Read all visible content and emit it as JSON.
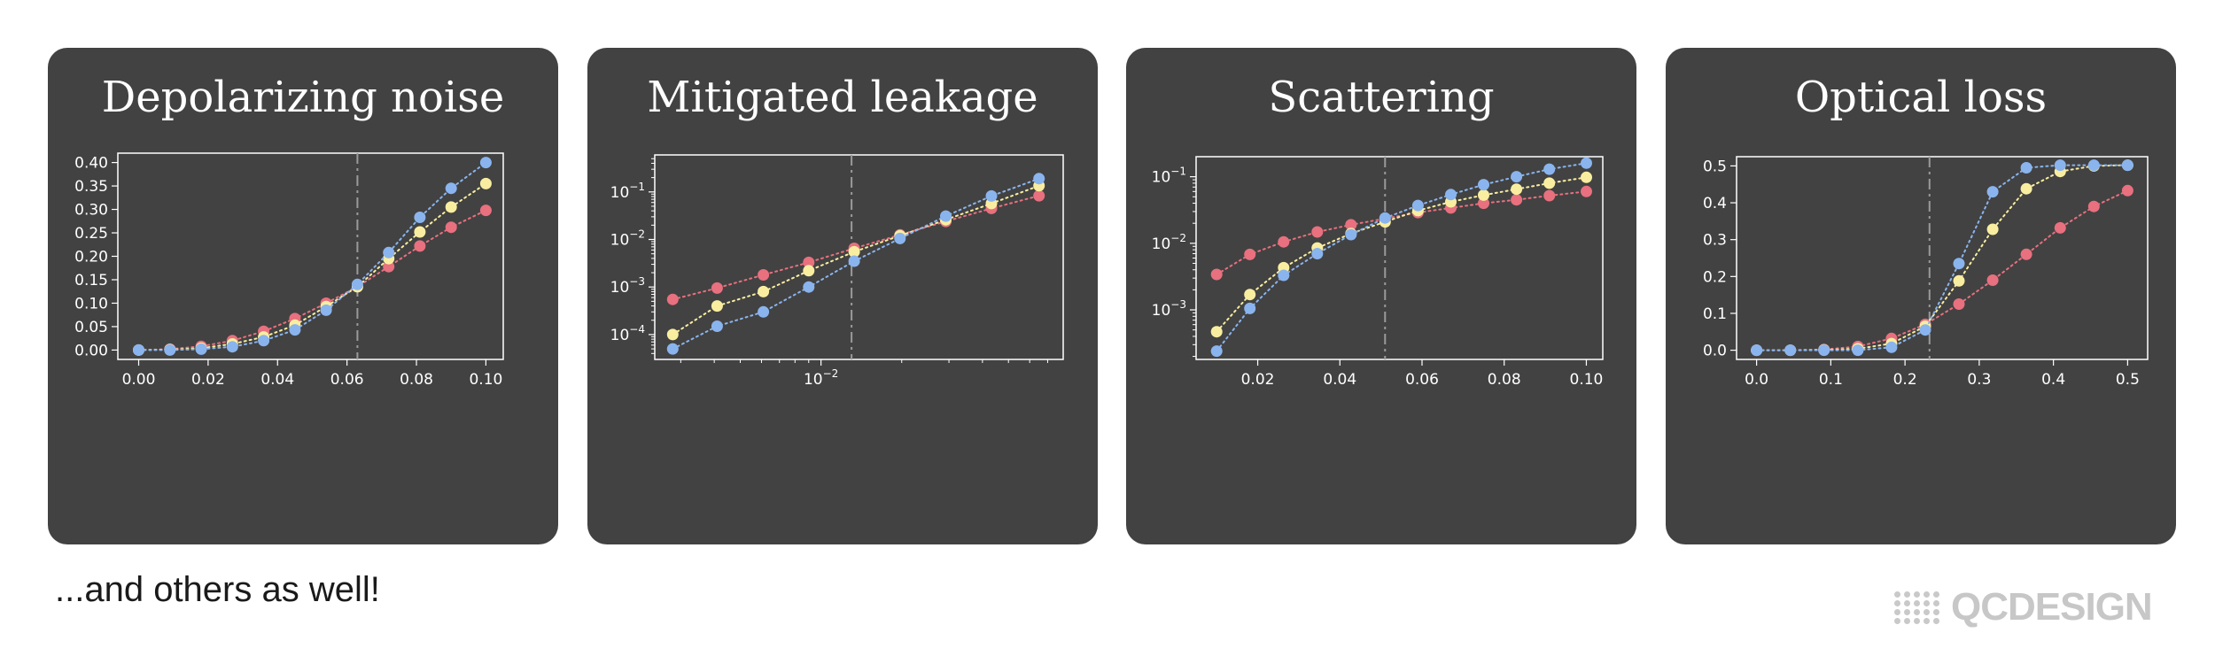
{
  "footer": {
    "text": "...and others as well!"
  },
  "logo": {
    "text": "QCDESIGN",
    "color": "#c7c7c7"
  },
  "colors": {
    "card_bg": "#424242",
    "plot_bg": "#424242",
    "frame": "#ffffff",
    "threshold_line": "#9a9a9a",
    "blue": "#8ab4ee",
    "yellow": "#f9eea0",
    "red": "#e8707f"
  },
  "chart_data": [
    {
      "type": "line",
      "title": "Depolarizing noise",
      "xlabel": "",
      "ylabel": "",
      "xscale": "linear",
      "yscale": "linear",
      "xlim": [
        -0.006,
        0.105
      ],
      "ylim": [
        -0.02,
        0.42
      ],
      "xticks": [
        0,
        0.02,
        0.04,
        0.06,
        0.08,
        0.1
      ],
      "xtick_labels": [
        "0.00",
        "0.02",
        "0.04",
        "0.06",
        "0.08",
        "0.10"
      ],
      "yticks": [
        0,
        0.05,
        0.1,
        0.15,
        0.2,
        0.25,
        0.3,
        0.35,
        0.4
      ],
      "ytick_labels": [
        "0.00",
        "0.05",
        "0.10",
        "0.15",
        "0.20",
        "0.25",
        "0.30",
        "0.35",
        "0.40"
      ],
      "threshold": 0.063,
      "grid": false,
      "legend": "none",
      "x": [
        0,
        0.009,
        0.018,
        0.027,
        0.036,
        0.045,
        0.054,
        0.063,
        0.072,
        0.081,
        0.09,
        0.1
      ],
      "series": [
        {
          "color": "#e8707f",
          "values": [
            0,
            0.002,
            0.008,
            0.02,
            0.04,
            0.067,
            0.1,
            0.135,
            0.178,
            0.222,
            0.262,
            0.298
          ]
        },
        {
          "color": "#f9eea0",
          "values": [
            0,
            0.001,
            0.004,
            0.013,
            0.028,
            0.053,
            0.093,
            0.135,
            0.195,
            0.252,
            0.305,
            0.355
          ]
        },
        {
          "color": "#8ab4ee",
          "values": [
            0,
            0,
            0.002,
            0.007,
            0.02,
            0.043,
            0.085,
            0.14,
            0.208,
            0.283,
            0.345,
            0.4
          ]
        }
      ]
    },
    {
      "type": "line",
      "title": "Mitigated leakage",
      "xlabel": "",
      "ylabel": "",
      "xscale": "log",
      "yscale": "log",
      "xlim": [
        0.0024,
        0.08
      ],
      "ylim": [
        3e-05,
        0.6
      ],
      "xticks": [
        0.01
      ],
      "xtick_labels": [
        "10-2"
      ],
      "yticks": [
        0.0001,
        0.001,
        0.01,
        0.1
      ],
      "ytick_labels": [
        "10-4",
        "10-3",
        "10-2",
        "10-1"
      ],
      "threshold": 0.013,
      "grid": false,
      "legend": "none",
      "x": [
        0.0028,
        0.0034,
        0.0041,
        0.005,
        0.0061,
        0.0074,
        0.009,
        0.011,
        0.0133,
        0.0162,
        0.0197,
        0.024,
        0.0292,
        0.0355,
        0.0432,
        0.0525,
        0.065
      ],
      "series": [
        {
          "color": "#e8707f",
          "values": [
            0.00055,
            null,
            0.00095,
            null,
            0.0018,
            null,
            0.0033,
            null,
            0.0065,
            null,
            0.0125,
            null,
            0.024,
            null,
            0.045,
            null,
            0.083
          ]
        },
        {
          "color": "#f9eea0",
          "values": [
            0.0001,
            null,
            0.0004,
            null,
            0.0008,
            null,
            0.0022,
            null,
            0.0055,
            null,
            0.012,
            null,
            0.026,
            null,
            0.057,
            null,
            0.135
          ]
        },
        {
          "color": "#8ab4ee",
          "values": [
            5e-05,
            null,
            0.00015,
            null,
            0.0003,
            null,
            0.001,
            null,
            0.0035,
            null,
            0.0105,
            null,
            0.031,
            null,
            0.082,
            null,
            0.19
          ]
        }
      ]
    },
    {
      "type": "line",
      "title": "Scattering",
      "xlabel": "",
      "ylabel": "",
      "xscale": "linear",
      "yscale": "log",
      "xlim": [
        0.005,
        0.104
      ],
      "ylim": [
        0.00018,
        0.2
      ],
      "xticks": [
        0.02,
        0.04,
        0.06,
        0.08,
        0.1
      ],
      "xtick_labels": [
        "0.02",
        "0.04",
        "0.06",
        "0.08",
        "0.10"
      ],
      "yticks": [
        0.001,
        0.01,
        0.1
      ],
      "ytick_labels": [
        "10-3",
        "10-2",
        "10-1"
      ],
      "threshold": 0.051,
      "grid": false,
      "legend": "none",
      "x": [
        0.01,
        0.0181,
        0.0263,
        0.0345,
        0.0427,
        0.051,
        0.059,
        0.067,
        0.075,
        0.083,
        0.091,
        0.1
      ],
      "series": [
        {
          "color": "#e8707f",
          "values": [
            0.0034,
            0.0068,
            0.0105,
            0.0148,
            0.019,
            0.0235,
            0.029,
            0.034,
            0.04,
            0.045,
            0.052,
            0.06
          ]
        },
        {
          "color": "#f9eea0",
          "values": [
            0.00047,
            0.0017,
            0.0043,
            0.0085,
            0.014,
            0.021,
            0.031,
            0.042,
            0.053,
            0.065,
            0.08,
            0.098
          ]
        },
        {
          "color": "#8ab4ee",
          "values": [
            0.00024,
            0.00105,
            0.0033,
            0.007,
            0.0135,
            0.024,
            0.037,
            0.054,
            0.076,
            0.1,
            0.13,
            0.16
          ]
        }
      ]
    },
    {
      "type": "line",
      "title": "Optical loss",
      "xlabel": "",
      "ylabel": "",
      "xscale": "linear",
      "yscale": "linear",
      "xlim": [
        -0.027,
        0.527
      ],
      "ylim": [
        -0.025,
        0.525
      ],
      "xticks": [
        0,
        0.1,
        0.2,
        0.3,
        0.4,
        0.5
      ],
      "xtick_labels": [
        "0.0",
        "0.1",
        "0.2",
        "0.3",
        "0.4",
        "0.5"
      ],
      "yticks": [
        0,
        0.1,
        0.2,
        0.3,
        0.4,
        0.5
      ],
      "ytick_labels": [
        "0.0",
        "0.1",
        "0.2",
        "0.3",
        "0.4",
        "0.5"
      ],
      "threshold": 0.233,
      "grid": false,
      "legend": "none",
      "x": [
        0,
        0.0455,
        0.0909,
        0.1364,
        0.1818,
        0.2273,
        0.2727,
        0.3182,
        0.3636,
        0.4091,
        0.4545,
        0.5
      ],
      "series": [
        {
          "color": "#e8707f",
          "values": [
            0,
            0,
            0.002,
            0.01,
            0.032,
            0.07,
            0.125,
            0.19,
            0.26,
            0.332,
            0.39,
            0.433
          ]
        },
        {
          "color": "#f9eea0",
          "values": [
            0,
            0,
            0.001,
            0.004,
            0.018,
            0.065,
            0.188,
            0.328,
            0.438,
            0.485,
            0.5,
            0.502
          ]
        },
        {
          "color": "#8ab4ee",
          "values": [
            0,
            0,
            0,
            0,
            0.008,
            0.055,
            0.235,
            0.43,
            0.495,
            0.502,
            0.502,
            0.502
          ]
        }
      ]
    }
  ]
}
